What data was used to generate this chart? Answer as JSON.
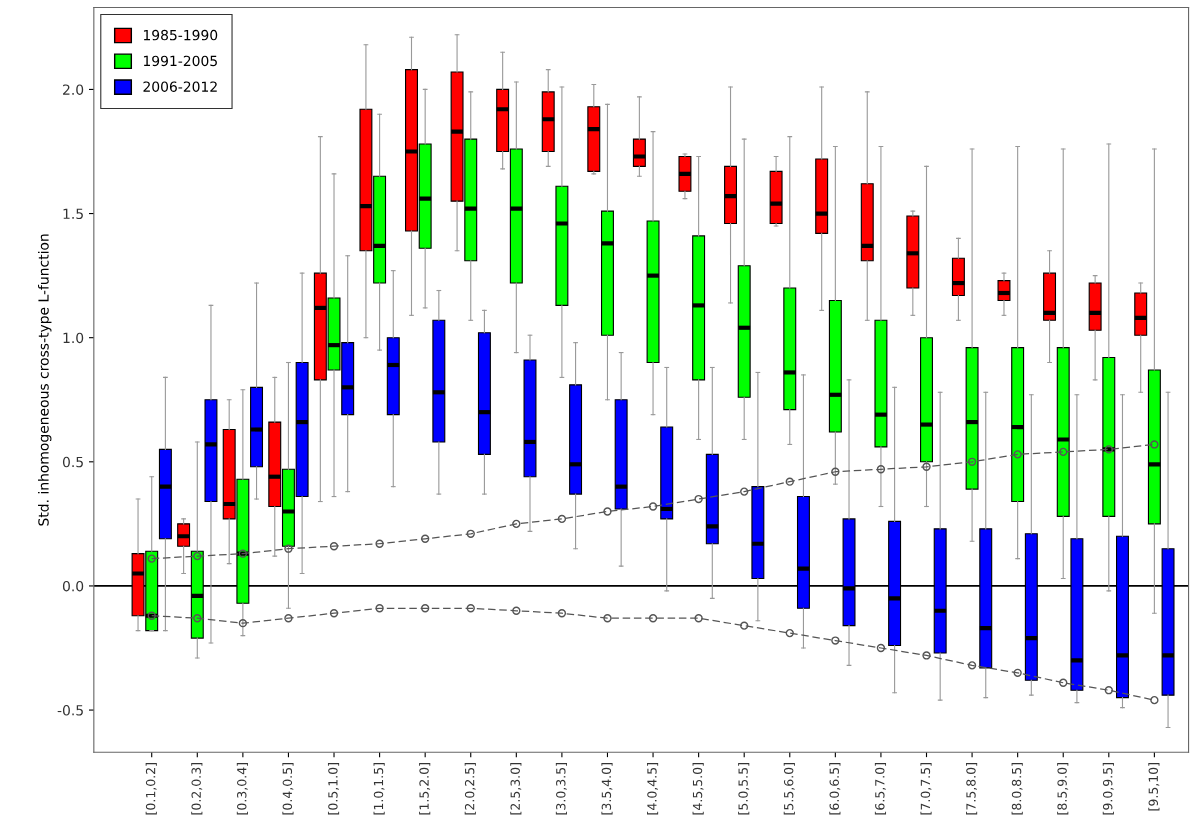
{
  "chart_data": {
    "type": "box",
    "ylabel": "Std. inhomogeneous cross-type L-function",
    "categories": [
      "[0.1,0.2]",
      "[0.2,0.3]",
      "[0.3,0.4]",
      "[0.4,0.5]",
      "[0.5,1.0]",
      "[1.0,1.5]",
      "[1.5,2.0]",
      "[2.0,2.5]",
      "[2.5,3.0]",
      "[3.0,3.5]",
      "[3.5,4.0]",
      "[4.0,4.5]",
      "[4.5,5.0]",
      "[5.0,5.5]",
      "[5.5,6.0]",
      "[6.0,6.5]",
      "[6.5,7.0]",
      "[7.0,7.5]",
      "[7.5,8.0]",
      "[8.0,8.5]",
      "[8.5,9.0]",
      "[9.0,9.5]",
      "[9.5,10]"
    ],
    "ylim": [
      -0.67,
      2.33
    ],
    "yticks": [
      {
        "value": -0.5,
        "label": "-0.5"
      },
      {
        "value": 0,
        "label": "0.0"
      },
      {
        "value": 0.5,
        "label": "0.5"
      },
      {
        "value": 1,
        "label": "1.0"
      },
      {
        "value": 1.5,
        "label": "1.5"
      },
      {
        "value": 2,
        "label": "2.0"
      }
    ],
    "grid": false,
    "legend": "top left",
    "ref_lines": [
      {
        "axis": "y",
        "value": 0,
        "color": "#000000",
        "line_style": "solid"
      }
    ],
    "series": [
      {
        "name": "1985-1990",
        "color": "#ff0000",
        "boxes": [
          {
            "low": -0.18,
            "q1": -0.12,
            "median": 0.05,
            "q3": 0.13,
            "high": 0.35
          },
          {
            "low": 0.05,
            "q1": 0.16,
            "median": 0.2,
            "q3": 0.25,
            "high": 0.27
          },
          {
            "low": 0.09,
            "q1": 0.27,
            "median": 0.33,
            "q3": 0.63,
            "high": 0.75
          },
          {
            "low": 0.12,
            "q1": 0.32,
            "median": 0.44,
            "q3": 0.66,
            "high": 0.84
          },
          {
            "low": 0.34,
            "q1": 0.83,
            "median": 1.12,
            "q3": 1.26,
            "high": 1.81
          },
          {
            "low": 1.0,
            "q1": 1.35,
            "median": 1.53,
            "q3": 1.92,
            "high": 2.18
          },
          {
            "low": 1.09,
            "q1": 1.43,
            "median": 1.75,
            "q3": 2.08,
            "high": 2.21
          },
          {
            "low": 1.35,
            "q1": 1.55,
            "median": 1.83,
            "q3": 2.07,
            "high": 2.22
          },
          {
            "low": 1.68,
            "q1": 1.75,
            "median": 1.92,
            "q3": 2.0,
            "high": 2.15
          },
          {
            "low": 1.69,
            "q1": 1.75,
            "median": 1.88,
            "q3": 1.99,
            "high": 2.08
          },
          {
            "low": 1.66,
            "q1": 1.67,
            "median": 1.84,
            "q3": 1.93,
            "high": 2.02
          },
          {
            "low": 1.65,
            "q1": 1.69,
            "median": 1.73,
            "q3": 1.8,
            "high": 1.97
          },
          {
            "low": 1.56,
            "q1": 1.59,
            "median": 1.66,
            "q3": 1.73,
            "high": 1.74
          },
          {
            "low": 1.14,
            "q1": 1.46,
            "median": 1.57,
            "q3": 1.69,
            "high": 2.01
          },
          {
            "low": 1.45,
            "q1": 1.46,
            "median": 1.54,
            "q3": 1.67,
            "high": 1.73
          },
          {
            "low": 1.11,
            "q1": 1.42,
            "median": 1.5,
            "q3": 1.72,
            "high": 2.01
          },
          {
            "low": 1.07,
            "q1": 1.31,
            "median": 1.37,
            "q3": 1.62,
            "high": 1.99
          },
          {
            "low": 1.09,
            "q1": 1.2,
            "median": 1.34,
            "q3": 1.49,
            "high": 1.51
          },
          {
            "low": 1.07,
            "q1": 1.17,
            "median": 1.22,
            "q3": 1.32,
            "high": 1.4
          },
          {
            "low": 1.09,
            "q1": 1.15,
            "median": 1.18,
            "q3": 1.23,
            "high": 1.26
          },
          {
            "low": 0.9,
            "q1": 1.07,
            "median": 1.1,
            "q3": 1.26,
            "high": 1.35
          },
          {
            "low": 0.83,
            "q1": 1.03,
            "median": 1.1,
            "q3": 1.22,
            "high": 1.25
          },
          {
            "low": 0.78,
            "q1": 1.01,
            "median": 1.08,
            "q3": 1.18,
            "high": 1.22
          }
        ]
      },
      {
        "name": "1991-2005",
        "color": "#00ff00",
        "boxes": [
          {
            "low": -0.18,
            "q1": -0.18,
            "median": -0.12,
            "q3": 0.14,
            "high": 0.44
          },
          {
            "low": -0.29,
            "q1": -0.21,
            "median": -0.04,
            "q3": 0.14,
            "high": 0.58
          },
          {
            "low": -0.2,
            "q1": -0.07,
            "median": 0.13,
            "q3": 0.43,
            "high": 0.79
          },
          {
            "low": -0.09,
            "q1": 0.16,
            "median": 0.3,
            "q3": 0.47,
            "high": 0.9
          },
          {
            "low": 0.36,
            "q1": 0.87,
            "median": 0.97,
            "q3": 1.16,
            "high": 1.66
          },
          {
            "low": 0.95,
            "q1": 1.22,
            "median": 1.37,
            "q3": 1.65,
            "high": 1.9
          },
          {
            "low": 1.12,
            "q1": 1.36,
            "median": 1.56,
            "q3": 1.78,
            "high": 2.0
          },
          {
            "low": 1.07,
            "q1": 1.31,
            "median": 1.52,
            "q3": 1.8,
            "high": 1.99
          },
          {
            "low": 0.94,
            "q1": 1.22,
            "median": 1.52,
            "q3": 1.76,
            "high": 2.03
          },
          {
            "low": 0.84,
            "q1": 1.13,
            "median": 1.46,
            "q3": 1.61,
            "high": 2.01
          },
          {
            "low": 0.75,
            "q1": 1.01,
            "median": 1.38,
            "q3": 1.51,
            "high": 1.94
          },
          {
            "low": 0.69,
            "q1": 0.9,
            "median": 1.25,
            "q3": 1.47,
            "high": 1.83
          },
          {
            "low": 0.59,
            "q1": 0.83,
            "median": 1.13,
            "q3": 1.41,
            "high": 1.73
          },
          {
            "low": 0.59,
            "q1": 0.76,
            "median": 1.04,
            "q3": 1.29,
            "high": 1.8
          },
          {
            "low": 0.57,
            "q1": 0.71,
            "median": 0.86,
            "q3": 1.2,
            "high": 1.81
          },
          {
            "low": 0.41,
            "q1": 0.62,
            "median": 0.77,
            "q3": 1.15,
            "high": 1.77
          },
          {
            "low": 0.32,
            "q1": 0.56,
            "median": 0.69,
            "q3": 1.07,
            "high": 1.77
          },
          {
            "low": 0.32,
            "q1": 0.5,
            "median": 0.65,
            "q3": 1.0,
            "high": 1.69
          },
          {
            "low": 0.18,
            "q1": 0.39,
            "median": 0.66,
            "q3": 0.96,
            "high": 1.76
          },
          {
            "low": 0.11,
            "q1": 0.34,
            "median": 0.64,
            "q3": 0.96,
            "high": 1.77
          },
          {
            "low": 0.03,
            "q1": 0.28,
            "median": 0.59,
            "q3": 0.96,
            "high": 1.76
          },
          {
            "low": -0.02,
            "q1": 0.28,
            "median": 0.55,
            "q3": 0.92,
            "high": 1.78
          },
          {
            "low": -0.11,
            "q1": 0.25,
            "median": 0.49,
            "q3": 0.87,
            "high": 1.76
          }
        ]
      },
      {
        "name": "2006-2012",
        "color": "#0000ff",
        "boxes": [
          {
            "low": -0.18,
            "q1": 0.19,
            "median": 0.4,
            "q3": 0.55,
            "high": 0.84
          },
          {
            "low": -0.23,
            "q1": 0.34,
            "median": 0.57,
            "q3": 0.75,
            "high": 1.13
          },
          {
            "low": 0.35,
            "q1": 0.48,
            "median": 0.63,
            "q3": 0.8,
            "high": 1.22
          },
          {
            "low": 0.05,
            "q1": 0.36,
            "median": 0.66,
            "q3": 0.9,
            "high": 1.26
          },
          {
            "low": 0.38,
            "q1": 0.69,
            "median": 0.8,
            "q3": 0.98,
            "high": 1.33
          },
          {
            "low": 0.4,
            "q1": 0.69,
            "median": 0.89,
            "q3": 1.0,
            "high": 1.27
          },
          {
            "low": 0.37,
            "q1": 0.58,
            "median": 0.78,
            "q3": 1.07,
            "high": 1.19
          },
          {
            "low": 0.37,
            "q1": 0.53,
            "median": 0.7,
            "q3": 1.02,
            "high": 1.11
          },
          {
            "low": 0.22,
            "q1": 0.44,
            "median": 0.58,
            "q3": 0.91,
            "high": 1.01
          },
          {
            "low": 0.15,
            "q1": 0.37,
            "median": 0.49,
            "q3": 0.81,
            "high": 0.98
          },
          {
            "low": 0.08,
            "q1": 0.31,
            "median": 0.4,
            "q3": 0.75,
            "high": 0.94
          },
          {
            "low": -0.02,
            "q1": 0.27,
            "median": 0.31,
            "q3": 0.64,
            "high": 0.88
          },
          {
            "low": -0.05,
            "q1": 0.17,
            "median": 0.24,
            "q3": 0.53,
            "high": 0.88
          },
          {
            "low": -0.14,
            "q1": 0.03,
            "median": 0.17,
            "q3": 0.4,
            "high": 0.86
          },
          {
            "low": -0.25,
            "q1": -0.09,
            "median": 0.07,
            "q3": 0.36,
            "high": 0.85
          },
          {
            "low": -0.32,
            "q1": -0.16,
            "median": -0.01,
            "q3": 0.27,
            "high": 0.83
          },
          {
            "low": -0.43,
            "q1": -0.24,
            "median": -0.05,
            "q3": 0.26,
            "high": 0.8
          },
          {
            "low": -0.46,
            "q1": -0.27,
            "median": -0.1,
            "q3": 0.23,
            "high": 0.78
          },
          {
            "low": -0.45,
            "q1": -0.33,
            "median": -0.17,
            "q3": 0.23,
            "high": 0.78
          },
          {
            "low": -0.44,
            "q1": -0.38,
            "median": -0.21,
            "q3": 0.21,
            "high": 0.77
          },
          {
            "low": -0.47,
            "q1": -0.42,
            "median": -0.3,
            "q3": 0.19,
            "high": 0.77
          },
          {
            "low": -0.49,
            "q1": -0.45,
            "median": -0.28,
            "q3": 0.2,
            "high": 0.77
          },
          {
            "low": -0.57,
            "q1": -0.44,
            "median": -0.28,
            "q3": 0.15,
            "high": 0.78
          }
        ]
      },
      {
        "type": "line",
        "color": "#555555",
        "line_style": "dashed",
        "marker": "circle",
        "values": [
          0.11,
          0.12,
          0.13,
          0.15,
          0.16,
          0.17,
          0.19,
          0.21,
          0.25,
          0.27,
          0.3,
          0.32,
          0.35,
          0.38,
          0.42,
          0.46,
          0.47,
          0.48,
          0.5,
          0.53,
          0.54,
          0.55,
          0.57
        ]
      },
      {
        "type": "line",
        "color": "#555555",
        "line_style": "dashed",
        "marker": "circle",
        "values": [
          -0.12,
          -0.13,
          -0.15,
          -0.13,
          -0.11,
          -0.09,
          -0.09,
          -0.09,
          -0.1,
          -0.11,
          -0.13,
          -0.13,
          -0.13,
          -0.16,
          -0.19,
          -0.22,
          -0.25,
          -0.28,
          -0.32,
          -0.35,
          -0.39,
          -0.42,
          -0.46
        ]
      }
    ]
  }
}
